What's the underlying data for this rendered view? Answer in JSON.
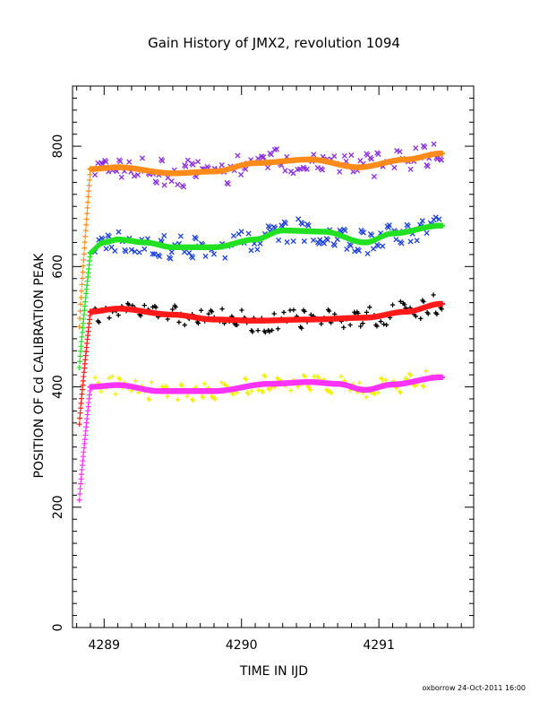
{
  "chart_data": {
    "type": "scatter",
    "title": "Gain History of JMX2, revolution 1094",
    "xlabel": "TIME IN IJD",
    "ylabel": "POSITION OF Cd CALIBRATION PEAK",
    "xlim": [
      4288.77,
      4291.69
    ],
    "ylim": [
      0,
      900
    ],
    "x_ticks": [
      4289,
      4290,
      4291
    ],
    "y_ticks": [
      0,
      200,
      400,
      600,
      800
    ],
    "grid": false,
    "footer": "oxborrow 24-Oct-2011 16:00",
    "colors": {
      "purple": "#8a2be2",
      "blue": "#1c3fe0",
      "black": "#000000",
      "yellow": "#f0f000",
      "orange": "#ff8c1a",
      "green": "#22e022",
      "red": "#ff1a1a",
      "magenta": "#ff33ff"
    },
    "series": [
      {
        "marker": "x",
        "color": "#8a2be2",
        "mean_curve": [
          [
            4288.9,
            762
          ],
          [
            4289.1,
            765
          ],
          [
            4289.5,
            755
          ],
          [
            4289.8,
            758
          ],
          [
            4290.1,
            772
          ],
          [
            4290.5,
            778
          ],
          [
            4290.85,
            765
          ],
          [
            4291.2,
            778
          ],
          [
            4291.45,
            788
          ]
        ],
        "scatter": 22,
        "seed": 11
      },
      {
        "marker": "x",
        "color": "#1c3fe0",
        "mean_curve": [
          [
            4288.87,
            620
          ],
          [
            4289.0,
            640
          ],
          [
            4289.1,
            645
          ],
          [
            4289.3,
            640
          ],
          [
            4289.5,
            632
          ],
          [
            4289.8,
            632
          ],
          [
            4290.1,
            645
          ],
          [
            4290.3,
            660
          ],
          [
            4290.6,
            658
          ],
          [
            4290.9,
            640
          ],
          [
            4291.1,
            655
          ],
          [
            4291.45,
            668
          ]
        ],
        "scatter": 20,
        "seed": 23
      },
      {
        "marker": "+",
        "color": "#000000",
        "mean_curve": [
          [
            4288.9,
            525
          ],
          [
            4289.1,
            530
          ],
          [
            4289.5,
            520
          ],
          [
            4289.8,
            512
          ],
          [
            4290.1,
            510
          ],
          [
            4290.5,
            512
          ],
          [
            4290.9,
            515
          ],
          [
            4291.2,
            525
          ],
          [
            4291.45,
            538
          ]
        ],
        "scatter": 18,
        "seed": 37
      },
      {
        "marker": "+",
        "color": "#f0f000",
        "mean_curve": [
          [
            4288.9,
            400
          ],
          [
            4289.1,
            403
          ],
          [
            4289.4,
            393
          ],
          [
            4289.8,
            393
          ],
          [
            4290.2,
            405
          ],
          [
            4290.5,
            408
          ],
          [
            4290.7,
            405
          ],
          [
            4290.9,
            395
          ],
          [
            4291.1,
            404
          ],
          [
            4291.45,
            416
          ]
        ],
        "scatter": 15,
        "seed": 41
      },
      {
        "marker": "+",
        "color": "#ff8c1a",
        "mean_curve": [
          [
            4288.9,
            762
          ],
          [
            4289.1,
            765
          ],
          [
            4289.5,
            755
          ],
          [
            4289.8,
            758
          ],
          [
            4290.1,
            772
          ],
          [
            4290.5,
            778
          ],
          [
            4290.85,
            765
          ],
          [
            4291.2,
            778
          ],
          [
            4291.45,
            788
          ]
        ],
        "ramp_start": 500,
        "fit": true,
        "seed": 5
      },
      {
        "marker": "+",
        "color": "#22e022",
        "mean_curve": [
          [
            4288.87,
            620
          ],
          [
            4289.0,
            640
          ],
          [
            4289.1,
            645
          ],
          [
            4289.3,
            640
          ],
          [
            4289.5,
            632
          ],
          [
            4289.8,
            632
          ],
          [
            4290.1,
            645
          ],
          [
            4290.3,
            660
          ],
          [
            4290.6,
            658
          ],
          [
            4290.9,
            640
          ],
          [
            4291.1,
            655
          ],
          [
            4291.45,
            668
          ]
        ],
        "ramp_start": 432,
        "fit": true,
        "seed": 6
      },
      {
        "marker": "+",
        "color": "#ff1a1a",
        "mean_curve": [
          [
            4288.9,
            525
          ],
          [
            4289.1,
            530
          ],
          [
            4289.5,
            520
          ],
          [
            4289.8,
            512
          ],
          [
            4290.1,
            510
          ],
          [
            4290.5,
            512
          ],
          [
            4290.9,
            515
          ],
          [
            4291.2,
            525
          ],
          [
            4291.45,
            538
          ]
        ],
        "ramp_start": 338,
        "fit": true,
        "seed": 7
      },
      {
        "marker": "+",
        "color": "#ff33ff",
        "mean_curve": [
          [
            4288.9,
            400
          ],
          [
            4289.1,
            403
          ],
          [
            4289.4,
            393
          ],
          [
            4289.8,
            393
          ],
          [
            4290.2,
            405
          ],
          [
            4290.5,
            408
          ],
          [
            4290.7,
            405
          ],
          [
            4290.9,
            395
          ],
          [
            4291.1,
            404
          ],
          [
            4291.45,
            416
          ]
        ],
        "ramp_start": 212,
        "fit": true,
        "seed": 8
      }
    ]
  }
}
